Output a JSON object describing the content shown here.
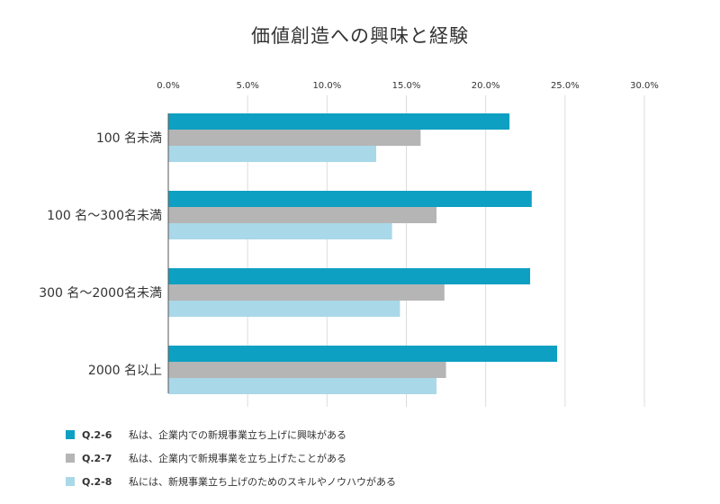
{
  "chart_data": {
    "type": "bar",
    "orientation": "horizontal",
    "title": "価値創造への興味と経験",
    "categories": [
      "100 名未満",
      "100 名～300名未満",
      "300 名～2000名未満",
      "2000 名以上"
    ],
    "series": [
      {
        "name": "Q.2-6",
        "description": "私は、企業内での新規事業立ち上げに興味がある",
        "color": "#0ea0c2",
        "values": [
          21.5,
          22.9,
          22.8,
          24.5
        ]
      },
      {
        "name": "Q.2-7",
        "description": "私は、企業内で新規事業を立ち上げたことがある",
        "color": "#b5b5b5",
        "values": [
          15.9,
          16.9,
          17.4,
          17.5
        ]
      },
      {
        "name": "Q.2-8",
        "description": "私には、新規事業立ち上げのためのスキルやノウハウがある",
        "color": "#a9d8e8",
        "values": [
          13.1,
          14.1,
          14.6,
          16.9
        ]
      }
    ],
    "xlim": [
      0,
      30
    ],
    "xticks": [
      0,
      5,
      10,
      15,
      20,
      25,
      30
    ],
    "xtick_labels": [
      "0.0%",
      "5.0%",
      "10.0%",
      "15.0%",
      "20.0%",
      "25.0%",
      "30.0%"
    ],
    "xlabel": "",
    "ylabel": "",
    "grid": true,
    "legend_position": "bottom-left"
  }
}
